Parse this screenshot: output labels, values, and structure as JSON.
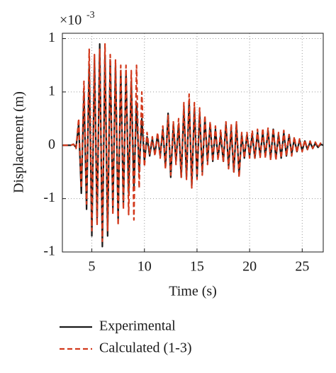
{
  "chart_data": {
    "type": "line",
    "multiplier": {
      "base": "×10",
      "exponent": "-3"
    },
    "xlabel": "Time (s)",
    "ylabel": "Displacement (m)",
    "x": [
      2.25,
      2.5,
      2.75,
      3.0,
      3.25,
      3.5,
      3.75,
      4.0,
      4.25,
      4.5,
      4.75,
      5.0,
      5.25,
      5.5,
      5.75,
      6.0,
      6.25,
      6.5,
      6.75,
      7.0,
      7.25,
      7.5,
      7.75,
      8.0,
      8.25,
      8.5,
      8.75,
      9.0,
      9.25,
      9.5,
      9.75,
      10.0,
      10.25,
      10.5,
      10.75,
      11.0,
      11.25,
      11.5,
      11.75,
      12.0,
      12.25,
      12.5,
      12.75,
      13.0,
      13.25,
      13.5,
      13.75,
      14.0,
      14.25,
      14.5,
      14.75,
      15.0,
      15.25,
      15.5,
      15.75,
      16.0,
      16.25,
      16.5,
      16.75,
      17.0,
      17.25,
      17.5,
      17.75,
      18.0,
      18.25,
      18.5,
      18.75,
      19.0,
      19.25,
      19.5,
      19.75,
      20.0,
      20.25,
      20.5,
      20.75,
      21.0,
      21.25,
      21.5,
      21.75,
      22.0,
      22.25,
      22.5,
      22.75,
      23.0,
      23.25,
      23.5,
      23.75,
      24.0,
      24.25,
      24.5,
      24.75,
      25.0,
      25.25,
      25.5,
      25.75,
      26.0,
      26.25,
      26.5,
      26.75,
      27.0
    ],
    "series": [
      {
        "name": "Experimental",
        "color": "#1a1a1a",
        "dash": "solid",
        "values": [
          0,
          0,
          0,
          0,
          0.01,
          -0.02,
          0.2,
          -0.45,
          0.5,
          -0.6,
          0.75,
          -0.85,
          0.8,
          -0.7,
          0.95,
          -0.95,
          0.85,
          -0.85,
          0.8,
          -0.6,
          0.75,
          -0.7,
          0.7,
          -0.55,
          0.7,
          -0.45,
          0.6,
          -0.4,
          0.4,
          -0.25,
          0.25,
          -0.15,
          0.08,
          -0.1,
          0.06,
          -0.08,
          0.1,
          -0.1,
          0.15,
          -0.2,
          0.3,
          -0.3,
          0.2,
          -0.15,
          0.2,
          -0.3,
          0.35,
          -0.3,
          0.42,
          -0.38,
          0.35,
          -0.3,
          0.3,
          -0.25,
          0.25,
          -0.15,
          0.2,
          -0.15,
          0.15,
          -0.12,
          0.1,
          -0.15,
          0.2,
          -0.2,
          0.15,
          -0.25,
          0.2,
          -0.28,
          0.1,
          -0.12,
          0.1,
          -0.1,
          0.1,
          -0.12,
          0.12,
          -0.1,
          0.12,
          -0.1,
          0.14,
          -0.12,
          0.15,
          -0.12,
          0.1,
          -0.12,
          0.12,
          -0.1,
          0.1,
          -0.08,
          0.06,
          -0.06,
          0.05,
          -0.05,
          0.04,
          -0.04,
          0.03,
          -0.03,
          0.02,
          -0.02,
          0.01,
          0
        ]
      },
      {
        "name": "Calculated (1-3)",
        "color": "#d2391c",
        "dash": "dashed",
        "values": [
          0,
          0,
          0,
          0,
          0.01,
          -0.03,
          0.25,
          -0.4,
          0.6,
          -0.55,
          0.9,
          -0.8,
          0.85,
          -0.75,
          0.9,
          -0.9,
          0.95,
          -0.8,
          0.85,
          -0.65,
          0.8,
          -0.75,
          0.75,
          -0.6,
          0.75,
          -0.65,
          0.7,
          -0.7,
          0.75,
          -0.4,
          0.5,
          -0.2,
          0.12,
          -0.08,
          0.08,
          -0.1,
          0.12,
          -0.12,
          0.18,
          -0.22,
          0.28,
          -0.28,
          0.22,
          -0.18,
          0.25,
          -0.3,
          0.4,
          -0.32,
          0.48,
          -0.4,
          0.4,
          -0.32,
          0.35,
          -0.28,
          0.28,
          -0.18,
          0.22,
          -0.15,
          0.18,
          -0.14,
          0.15,
          -0.16,
          0.22,
          -0.22,
          0.2,
          -0.25,
          0.22,
          -0.3,
          0.12,
          -0.12,
          0.12,
          -0.12,
          0.14,
          -0.12,
          0.15,
          -0.12,
          0.16,
          -0.12,
          0.16,
          -0.14,
          0.16,
          -0.14,
          0.12,
          -0.12,
          0.14,
          -0.1,
          0.1,
          -0.1,
          0.08,
          -0.07,
          0.06,
          -0.06,
          0.05,
          -0.04,
          0.04,
          -0.03,
          0.03,
          -0.02,
          0.02,
          0
        ]
      }
    ],
    "xlim": [
      2.2,
      27
    ],
    "ylim": [
      -1,
      1.05
    ],
    "xticks": [
      5,
      10,
      15,
      20,
      25
    ],
    "yticks": [
      {
        "value": 1,
        "label": "1"
      },
      {
        "value": 0.5,
        "label": "1"
      },
      {
        "value": 0,
        "label": "0"
      },
      {
        "value": -0.5,
        "label": "-1"
      },
      {
        "value": -1,
        "label": "-1"
      }
    ],
    "grid": true,
    "legend": "bottom"
  }
}
